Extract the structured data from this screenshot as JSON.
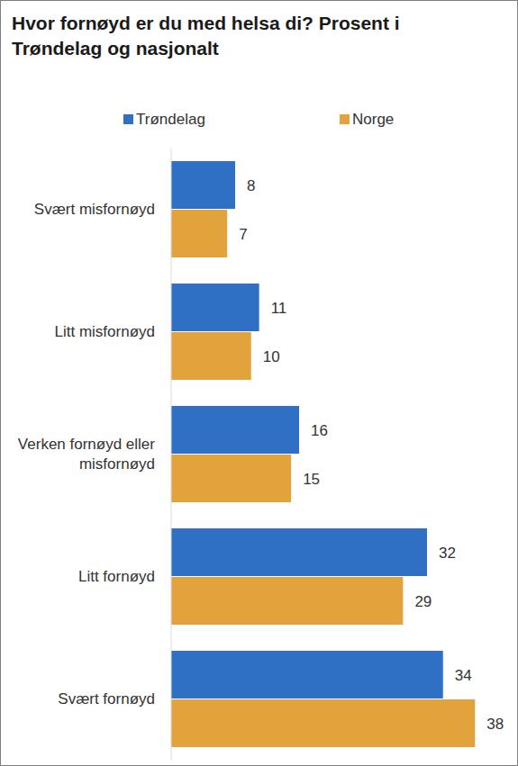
{
  "chart_data": {
    "type": "bar",
    "title": "Hvor fornøyd er du med helsa di? Prosent i Trøndelag og nasjonalt",
    "orientation": "horizontal",
    "categories": [
      "Svært misfornøyd",
      "Litt misfornøyd",
      "Verken fornøyd eller misfornøyd",
      "Litt fornøyd",
      "Svært fornøyd"
    ],
    "series": [
      {
        "name": "Trøndelag",
        "color": "#2f6fc4",
        "values": [
          8,
          11,
          16,
          32,
          34
        ]
      },
      {
        "name": "Norge",
        "color": "#e2a23c",
        "values": [
          7,
          10,
          15,
          29,
          38
        ]
      }
    ],
    "xlim": [
      0,
      40
    ],
    "data_labels": true,
    "tick_labels": false,
    "legend": "top"
  }
}
